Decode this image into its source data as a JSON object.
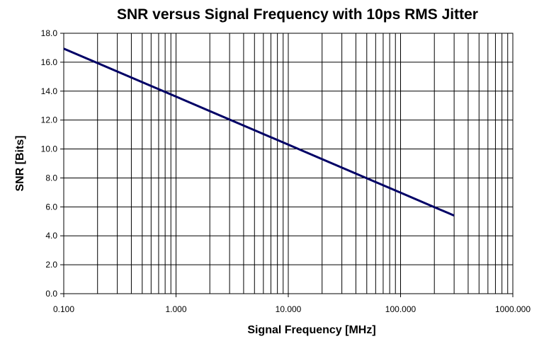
{
  "chart_data": {
    "type": "line",
    "title": "SNR versus Signal Frequency with 10ps RMS Jitter",
    "xlabel": "Signal Frequency [MHz]",
    "ylabel": "SNR [Bits]",
    "x_scale": "log",
    "xlim": [
      0.1,
      1000
    ],
    "ylim": [
      0,
      18
    ],
    "x_ticks": [
      0.1,
      1,
      10,
      100,
      1000
    ],
    "x_tick_labels": [
      "0.100",
      "1.000",
      "10.000",
      "100.000",
      "1000.000"
    ],
    "y_ticks": [
      0,
      2,
      4,
      6,
      8,
      10,
      12,
      14,
      16,
      18
    ],
    "y_tick_labels": [
      "0.0",
      "2.0",
      "4.0",
      "6.0",
      "8.0",
      "10.0",
      "12.0",
      "14.0",
      "16.0",
      "18.0"
    ],
    "grid": true,
    "legend": "none",
    "series": [
      {
        "color": "#000066",
        "x": [
          0.1,
          0.2,
          0.5,
          1,
          2,
          5,
          10,
          20,
          50,
          100,
          200,
          300
        ],
        "y": [
          16.94,
          15.94,
          14.62,
          13.62,
          12.62,
          11.3,
          10.3,
          9.3,
          7.98,
          6.98,
          5.98,
          5.4
        ]
      }
    ]
  }
}
